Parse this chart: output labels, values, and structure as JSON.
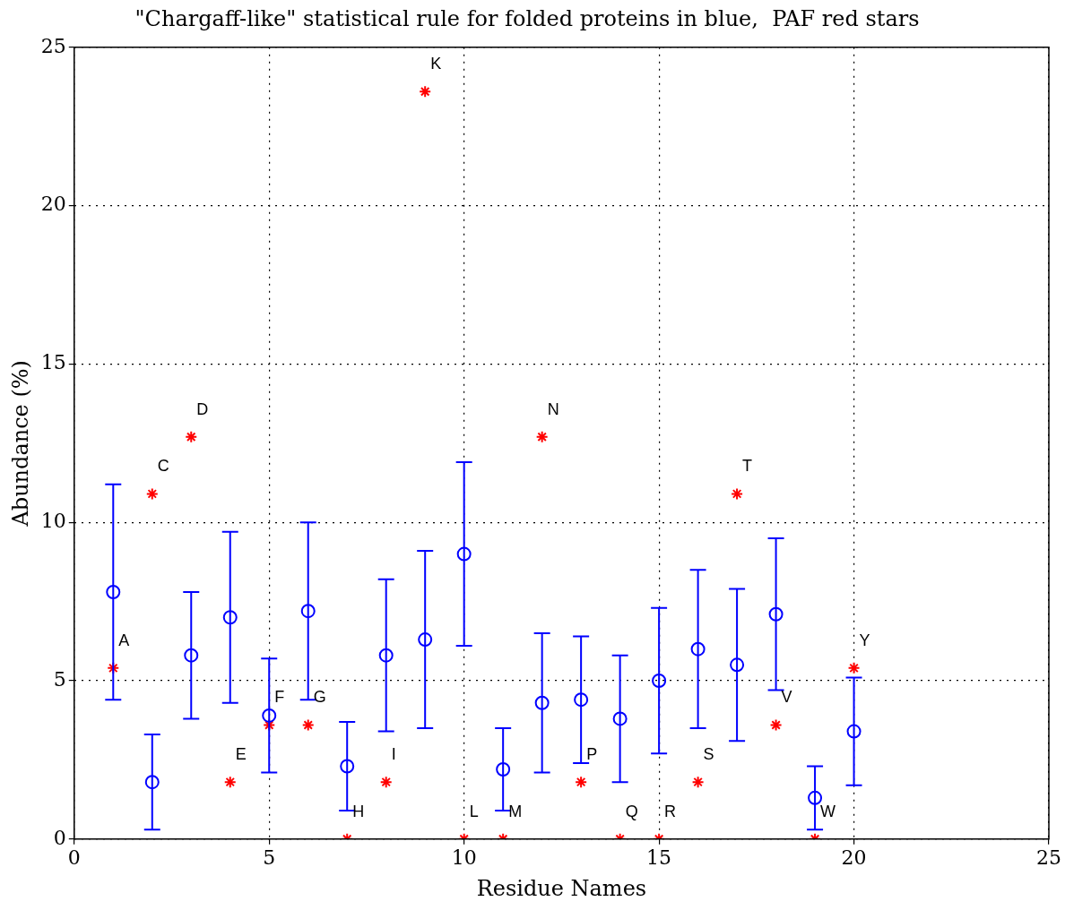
{
  "chart_data": {
    "type": "scatter",
    "title": "\"Chargaff-like\" statistical rule for folded proteins in blue,  PAF red stars",
    "xlabel": "Residue Names",
    "ylabel": "Abundance (%)",
    "x": [
      1,
      2,
      3,
      4,
      5,
      6,
      7,
      8,
      9,
      10,
      11,
      12,
      13,
      14,
      15,
      16,
      17,
      18,
      19,
      20
    ],
    "series": [
      {
        "color": "#0000ff",
        "marker": "circle",
        "values": [
          7.8,
          1.8,
          5.8,
          7.0,
          3.9,
          7.2,
          2.3,
          5.8,
          6.3,
          9.0,
          2.2,
          4.3,
          4.4,
          3.8,
          5.0,
          6.0,
          5.5,
          7.1,
          1.3,
          3.4
        ],
        "errors": [
          [
            4.4,
            11.2
          ],
          [
            0.3,
            3.3
          ],
          [
            3.8,
            7.8
          ],
          [
            4.3,
            9.7
          ],
          [
            2.1,
            5.7
          ],
          [
            4.4,
            10.0
          ],
          [
            0.9,
            3.7
          ],
          [
            3.4,
            8.2
          ],
          [
            3.5,
            9.1
          ],
          [
            6.1,
            11.9
          ],
          [
            0.9,
            3.5
          ],
          [
            2.1,
            6.5
          ],
          [
            2.4,
            6.4
          ],
          [
            1.8,
            5.8
          ],
          [
            2.7,
            7.3
          ],
          [
            3.5,
            8.5
          ],
          [
            3.1,
            7.9
          ],
          [
            4.7,
            9.5
          ],
          [
            0.3,
            2.3
          ],
          [
            1.7,
            5.1
          ]
        ]
      },
      {
        "color": "#ff0000",
        "marker": "cross",
        "values": [
          5.4,
          10.9,
          12.7,
          1.8,
          3.6,
          3.6,
          0,
          1.8,
          23.6,
          0,
          0,
          12.7,
          1.8,
          0,
          0,
          1.8,
          10.9,
          3.6,
          0,
          5.4
        ]
      }
    ],
    "annotations": [
      {
        "text": "A",
        "x": 1,
        "y": 5.4
      },
      {
        "text": "C",
        "x": 2,
        "y": 10.9
      },
      {
        "text": "D",
        "x": 3,
        "y": 12.7
      },
      {
        "text": "E",
        "x": 4,
        "y": 1.8
      },
      {
        "text": "F",
        "x": 5,
        "y": 3.6
      },
      {
        "text": "G",
        "x": 6,
        "y": 3.6
      },
      {
        "text": "H",
        "x": 7,
        "y": 0
      },
      {
        "text": "I",
        "x": 8,
        "y": 1.8
      },
      {
        "text": "K",
        "x": 9,
        "y": 23.6
      },
      {
        "text": "L",
        "x": 10,
        "y": 0
      },
      {
        "text": "M",
        "x": 11,
        "y": 0
      },
      {
        "text": "N",
        "x": 12,
        "y": 12.7
      },
      {
        "text": "P",
        "x": 13,
        "y": 1.8
      },
      {
        "text": "Q",
        "x": 14,
        "y": 0
      },
      {
        "text": "R",
        "x": 15,
        "y": 0
      },
      {
        "text": "S",
        "x": 16,
        "y": 1.8
      },
      {
        "text": "T",
        "x": 17,
        "y": 10.9
      },
      {
        "text": "V",
        "x": 18,
        "y": 3.6
      },
      {
        "text": "W",
        "x": 19,
        "y": 0
      },
      {
        "text": "Y",
        "x": 20,
        "y": 5.4
      }
    ],
    "xlim": [
      0,
      25
    ],
    "xticks": [
      0,
      5,
      10,
      15,
      20,
      25
    ],
    "ylim": [
      0,
      25
    ],
    "yticks": [
      0,
      5,
      10,
      15,
      20,
      25
    ],
    "grid": true,
    "legend": false
  }
}
